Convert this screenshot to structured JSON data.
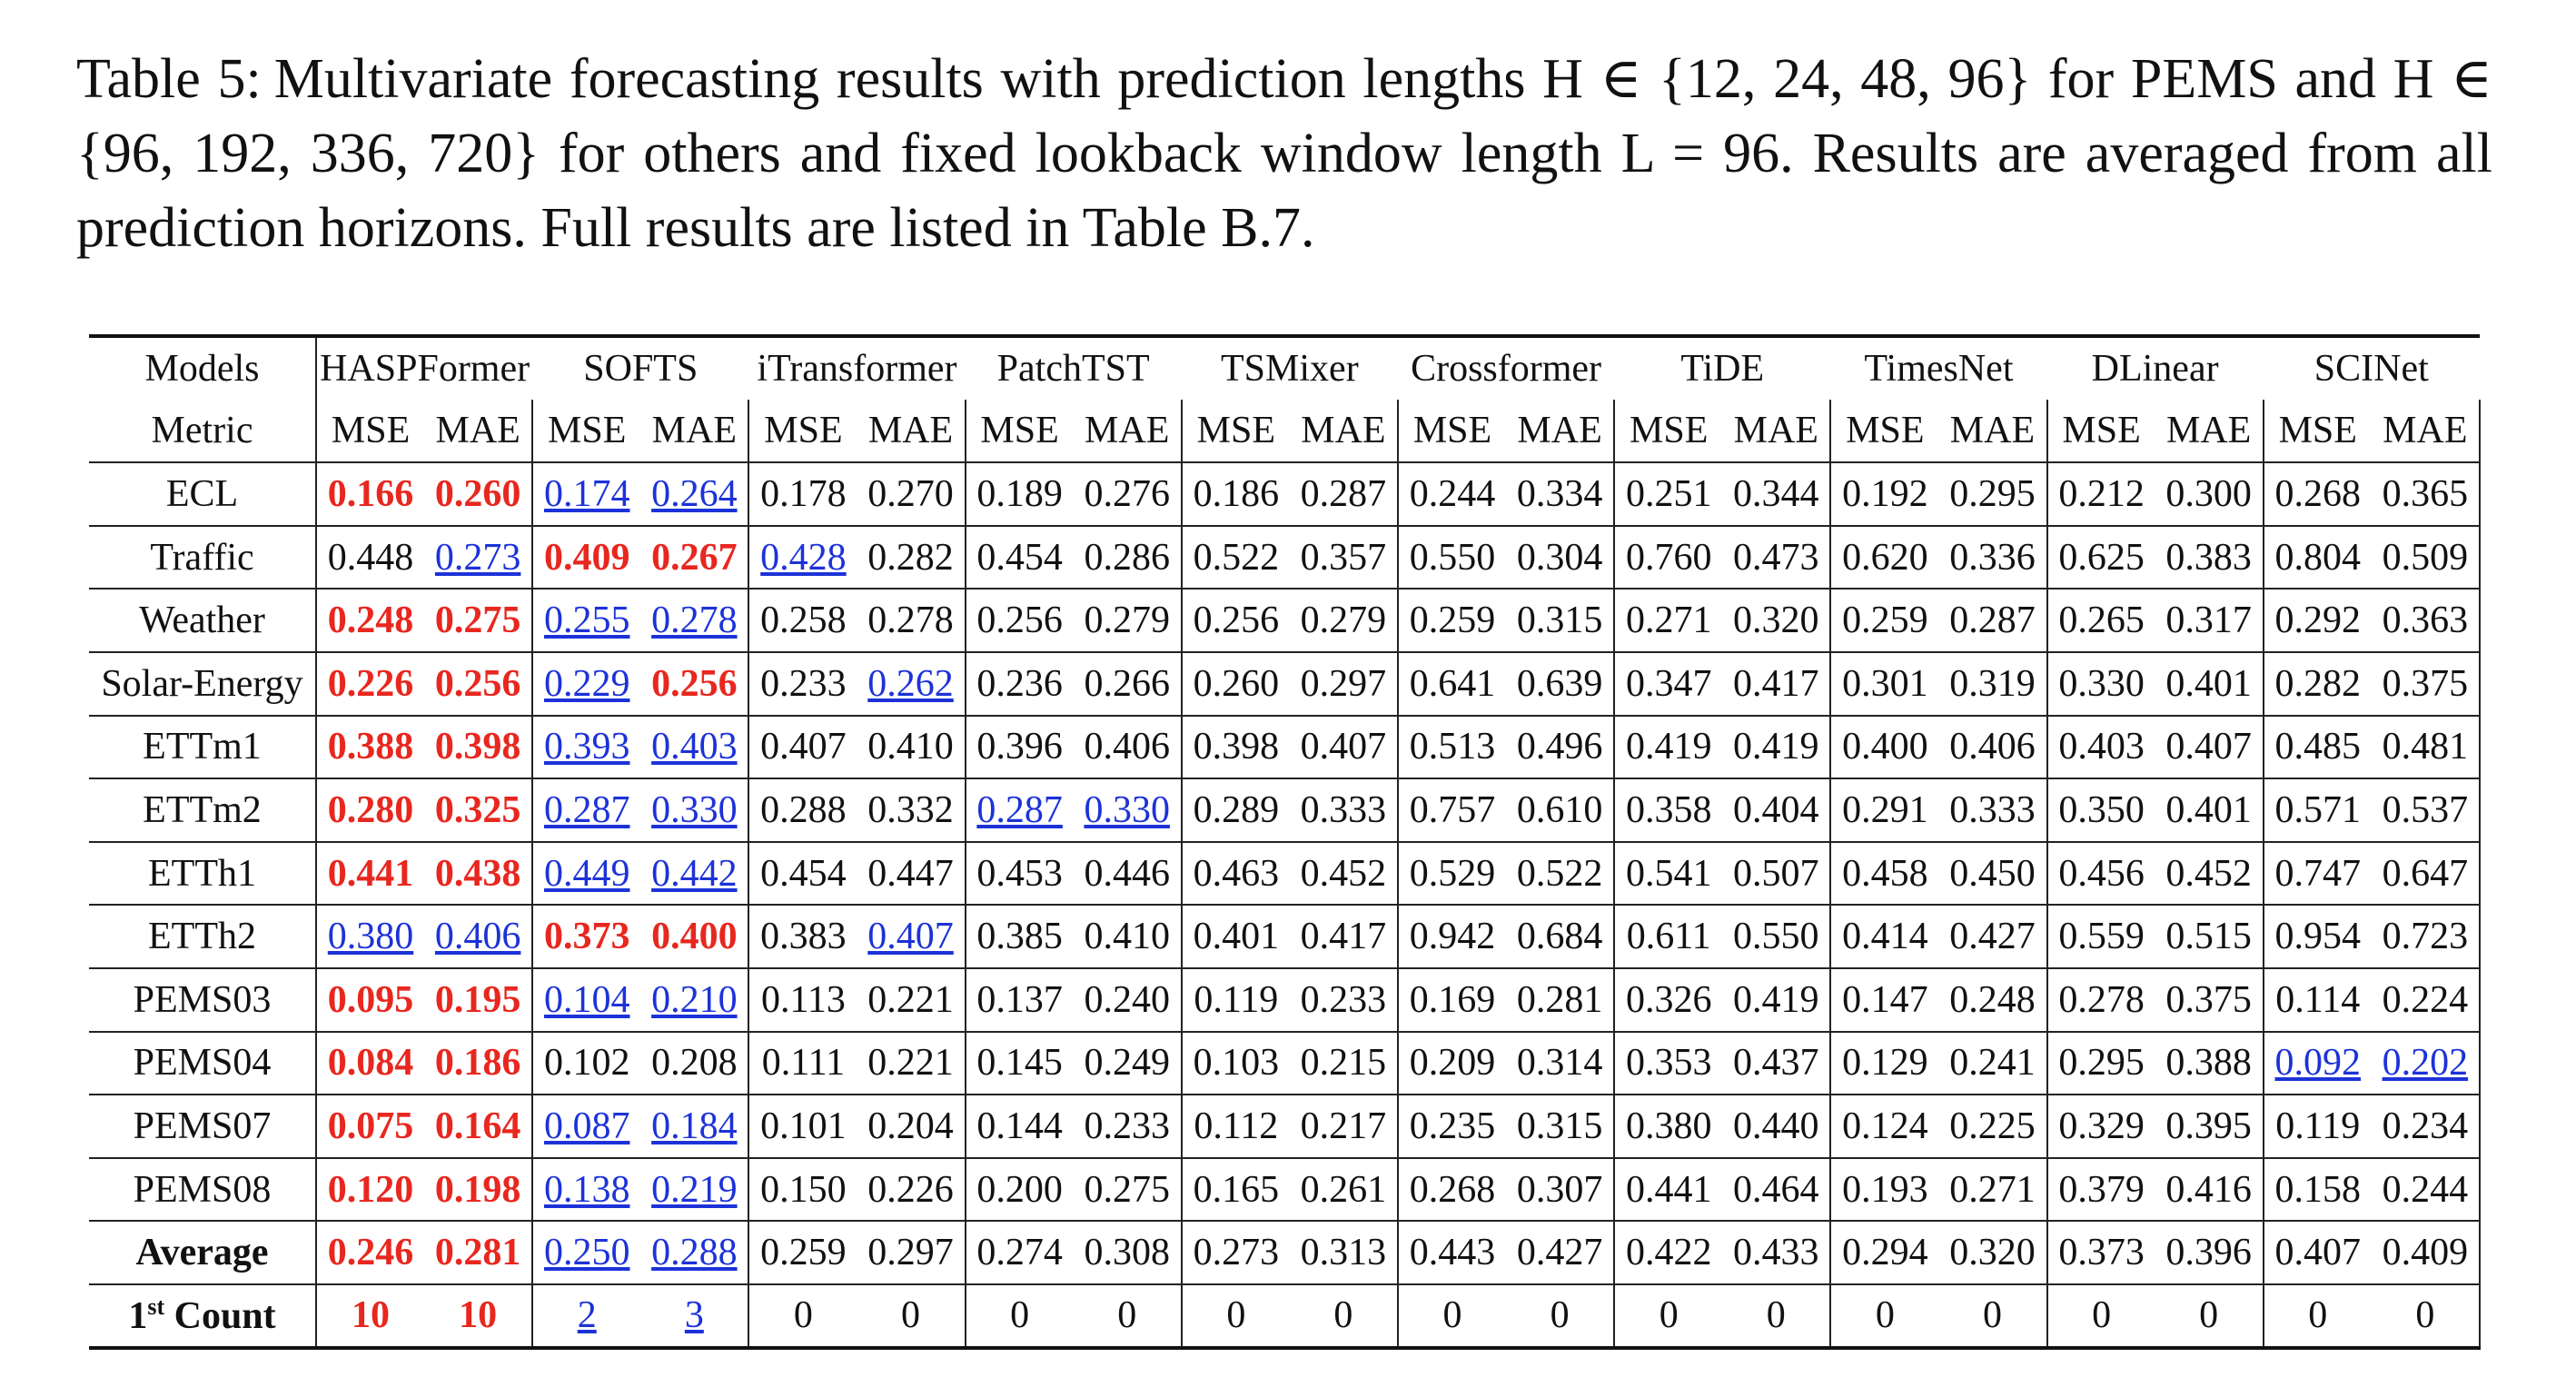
{
  "caption": {
    "label": "Table 5:",
    "text": "Multivariate forecasting results with prediction lengths H ∈ {12, 24, 48, 96} for PEMS and H ∈ {96, 192, 336, 720} for others and fixed lookback window length L = 96. Results are averaged from all prediction horizons. Full results are listed in Table B.7."
  },
  "header": {
    "models_label": "Models",
    "metric_label": "Metric",
    "models": [
      "HASPFormer",
      "SOFTS",
      "iTransformer",
      "PatchTST",
      "TSMixer",
      "Crossformer",
      "TiDE",
      "TimesNet",
      "DLinear",
      "SCINet"
    ],
    "metrics": [
      "MSE",
      "MAE"
    ]
  },
  "colors": {
    "best": "#e8271f",
    "second": "#1c32d8"
  },
  "rows": [
    {
      "dataset": "ECL",
      "v": [
        "0.166",
        "0.260",
        "0.174",
        "0.264",
        "0.178",
        "0.270",
        "0.189",
        "0.276",
        "0.186",
        "0.287",
        "0.244",
        "0.334",
        "0.251",
        "0.344",
        "0.192",
        "0.295",
        "0.212",
        "0.300",
        "0.268",
        "0.365"
      ],
      "s": [
        "b",
        "b",
        "u",
        "u",
        "",
        "",
        "",
        "",
        "",
        "",
        "",
        "",
        "",
        "",
        "",
        "",
        "",
        "",
        "",
        ""
      ]
    },
    {
      "dataset": "Traffic",
      "v": [
        "0.448",
        "0.273",
        "0.409",
        "0.267",
        "0.428",
        "0.282",
        "0.454",
        "0.286",
        "0.522",
        "0.357",
        "0.550",
        "0.304",
        "0.760",
        "0.473",
        "0.620",
        "0.336",
        "0.625",
        "0.383",
        "0.804",
        "0.509"
      ],
      "s": [
        "",
        "u",
        "b",
        "b",
        "u",
        "",
        "",
        "",
        "",
        "",
        "",
        "",
        "",
        "",
        "",
        "",
        "",
        "",
        "",
        ""
      ]
    },
    {
      "dataset": "Weather",
      "v": [
        "0.248",
        "0.275",
        "0.255",
        "0.278",
        "0.258",
        "0.278",
        "0.256",
        "0.279",
        "0.256",
        "0.279",
        "0.259",
        "0.315",
        "0.271",
        "0.320",
        "0.259",
        "0.287",
        "0.265",
        "0.317",
        "0.292",
        "0.363"
      ],
      "s": [
        "b",
        "b",
        "u",
        "u",
        "",
        "",
        "",
        "",
        "",
        "",
        "",
        "",
        "",
        "",
        "",
        "",
        "",
        "",
        "",
        ""
      ]
    },
    {
      "dataset": "Solar-Energy",
      "v": [
        "0.226",
        "0.256",
        "0.229",
        "0.256",
        "0.233",
        "0.262",
        "0.236",
        "0.266",
        "0.260",
        "0.297",
        "0.641",
        "0.639",
        "0.347",
        "0.417",
        "0.301",
        "0.319",
        "0.330",
        "0.401",
        "0.282",
        "0.375"
      ],
      "s": [
        "b",
        "b",
        "u",
        "b",
        "",
        "u",
        "",
        "",
        "",
        "",
        "",
        "",
        "",
        "",
        "",
        "",
        "",
        "",
        "",
        ""
      ]
    },
    {
      "dataset": "ETTm1",
      "v": [
        "0.388",
        "0.398",
        "0.393",
        "0.403",
        "0.407",
        "0.410",
        "0.396",
        "0.406",
        "0.398",
        "0.407",
        "0.513",
        "0.496",
        "0.419",
        "0.419",
        "0.400",
        "0.406",
        "0.403",
        "0.407",
        "0.485",
        "0.481"
      ],
      "s": [
        "b",
        "b",
        "u",
        "u",
        "",
        "",
        "",
        "",
        "",
        "",
        "",
        "",
        "",
        "",
        "",
        "",
        "",
        "",
        "",
        ""
      ]
    },
    {
      "dataset": "ETTm2",
      "v": [
        "0.280",
        "0.325",
        "0.287",
        "0.330",
        "0.288",
        "0.332",
        "0.287",
        "0.330",
        "0.289",
        "0.333",
        "0.757",
        "0.610",
        "0.358",
        "0.404",
        "0.291",
        "0.333",
        "0.350",
        "0.401",
        "0.571",
        "0.537"
      ],
      "s": [
        "b",
        "b",
        "u",
        "u",
        "",
        "",
        "u",
        "u",
        "",
        "",
        "",
        "",
        "",
        "",
        "",
        "",
        "",
        "",
        "",
        ""
      ]
    },
    {
      "dataset": "ETTh1",
      "v": [
        "0.441",
        "0.438",
        "0.449",
        "0.442",
        "0.454",
        "0.447",
        "0.453",
        "0.446",
        "0.463",
        "0.452",
        "0.529",
        "0.522",
        "0.541",
        "0.507",
        "0.458",
        "0.450",
        "0.456",
        "0.452",
        "0.747",
        "0.647"
      ],
      "s": [
        "b",
        "b",
        "u",
        "u",
        "",
        "",
        "",
        "",
        "",
        "",
        "",
        "",
        "",
        "",
        "",
        "",
        "",
        "",
        "",
        ""
      ]
    },
    {
      "dataset": "ETTh2",
      "v": [
        "0.380",
        "0.406",
        "0.373",
        "0.400",
        "0.383",
        "0.407",
        "0.385",
        "0.410",
        "0.401",
        "0.417",
        "0.942",
        "0.684",
        "0.611",
        "0.550",
        "0.414",
        "0.427",
        "0.559",
        "0.515",
        "0.954",
        "0.723"
      ],
      "s": [
        "u",
        "u",
        "b",
        "b",
        "",
        "u",
        "",
        "",
        "",
        "",
        "",
        "",
        "",
        "",
        "",
        "",
        "",
        "",
        "",
        ""
      ]
    },
    {
      "dataset": "PEMS03",
      "v": [
        "0.095",
        "0.195",
        "0.104",
        "0.210",
        "0.113",
        "0.221",
        "0.137",
        "0.240",
        "0.119",
        "0.233",
        "0.169",
        "0.281",
        "0.326",
        "0.419",
        "0.147",
        "0.248",
        "0.278",
        "0.375",
        "0.114",
        "0.224"
      ],
      "s": [
        "b",
        "b",
        "u",
        "u",
        "",
        "",
        "",
        "",
        "",
        "",
        "",
        "",
        "",
        "",
        "",
        "",
        "",
        "",
        "",
        ""
      ]
    },
    {
      "dataset": "PEMS04",
      "v": [
        "0.084",
        "0.186",
        "0.102",
        "0.208",
        "0.111",
        "0.221",
        "0.145",
        "0.249",
        "0.103",
        "0.215",
        "0.209",
        "0.314",
        "0.353",
        "0.437",
        "0.129",
        "0.241",
        "0.295",
        "0.388",
        "0.092",
        "0.202"
      ],
      "s": [
        "b",
        "b",
        "",
        "",
        "",
        "",
        "",
        "",
        "",
        "",
        "",
        "",
        "",
        "",
        "",
        "",
        "",
        "",
        "u",
        "u"
      ]
    },
    {
      "dataset": "PEMS07",
      "v": [
        "0.075",
        "0.164",
        "0.087",
        "0.184",
        "0.101",
        "0.204",
        "0.144",
        "0.233",
        "0.112",
        "0.217",
        "0.235",
        "0.315",
        "0.380",
        "0.440",
        "0.124",
        "0.225",
        "0.329",
        "0.395",
        "0.119",
        "0.234"
      ],
      "s": [
        "b",
        "b",
        "u",
        "u",
        "",
        "",
        "",
        "",
        "",
        "",
        "",
        "",
        "",
        "",
        "",
        "",
        "",
        "",
        "",
        ""
      ]
    },
    {
      "dataset": "PEMS08",
      "v": [
        "0.120",
        "0.198",
        "0.138",
        "0.219",
        "0.150",
        "0.226",
        "0.200",
        "0.275",
        "0.165",
        "0.261",
        "0.268",
        "0.307",
        "0.441",
        "0.464",
        "0.193",
        "0.271",
        "0.379",
        "0.416",
        "0.158",
        "0.244"
      ],
      "s": [
        "b",
        "b",
        "u",
        "u",
        "",
        "",
        "",
        "",
        "",
        "",
        "",
        "",
        "",
        "",
        "",
        "",
        "",
        "",
        "",
        ""
      ]
    },
    {
      "dataset": "Average",
      "bold_label": true,
      "v": [
        "0.246",
        "0.281",
        "0.250",
        "0.288",
        "0.259",
        "0.297",
        "0.274",
        "0.308",
        "0.273",
        "0.313",
        "0.443",
        "0.427",
        "0.422",
        "0.433",
        "0.294",
        "0.320",
        "0.373",
        "0.396",
        "0.407",
        "0.409"
      ],
      "s": [
        "b",
        "b",
        "u",
        "u",
        "",
        "",
        "",
        "",
        "",
        "",
        "",
        "",
        "",
        "",
        "",
        "",
        "",
        "",
        "",
        ""
      ]
    },
    {
      "dataset_main": "1",
      "dataset_sup": "st",
      "dataset_rest": " Count",
      "bold_label": true,
      "v": [
        "10",
        "10",
        "2",
        "3",
        "0",
        "0",
        "0",
        "0",
        "0",
        "0",
        "0",
        "0",
        "0",
        "0",
        "0",
        "0",
        "0",
        "0",
        "0",
        "0"
      ],
      "s": [
        "b",
        "b",
        "u",
        "u",
        "",
        "",
        "",
        "",
        "",
        "",
        "",
        "",
        "",
        "",
        "",
        "",
        "",
        "",
        "",
        ""
      ]
    }
  ]
}
